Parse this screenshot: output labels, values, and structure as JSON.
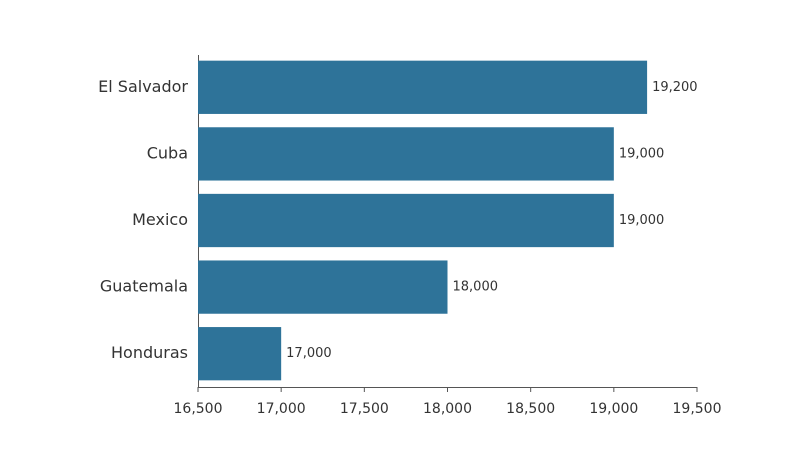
{
  "chart_data": {
    "type": "barh",
    "categories": [
      "El Salvador",
      "Cuba",
      "Mexico",
      "Guatemala",
      "Honduras"
    ],
    "values": [
      19200,
      19000,
      19000,
      18000,
      17000
    ],
    "value_labels": [
      "19,200",
      "19,000",
      "19,000",
      "18,000",
      "17,000"
    ],
    "color": "#2e7399",
    "xlim": [
      16500,
      19500
    ],
    "xticks": [
      {
        "value": 16500,
        "label": "16,500"
      },
      {
        "value": 17000,
        "label": "17,000"
      },
      {
        "value": 17500,
        "label": "17,500"
      },
      {
        "value": 18000,
        "label": "18,000"
      },
      {
        "value": 18500,
        "label": "18,500"
      },
      {
        "value": 19000,
        "label": "19,000"
      },
      {
        "value": 19500,
        "label": "19,500"
      }
    ],
    "grid": false
  }
}
